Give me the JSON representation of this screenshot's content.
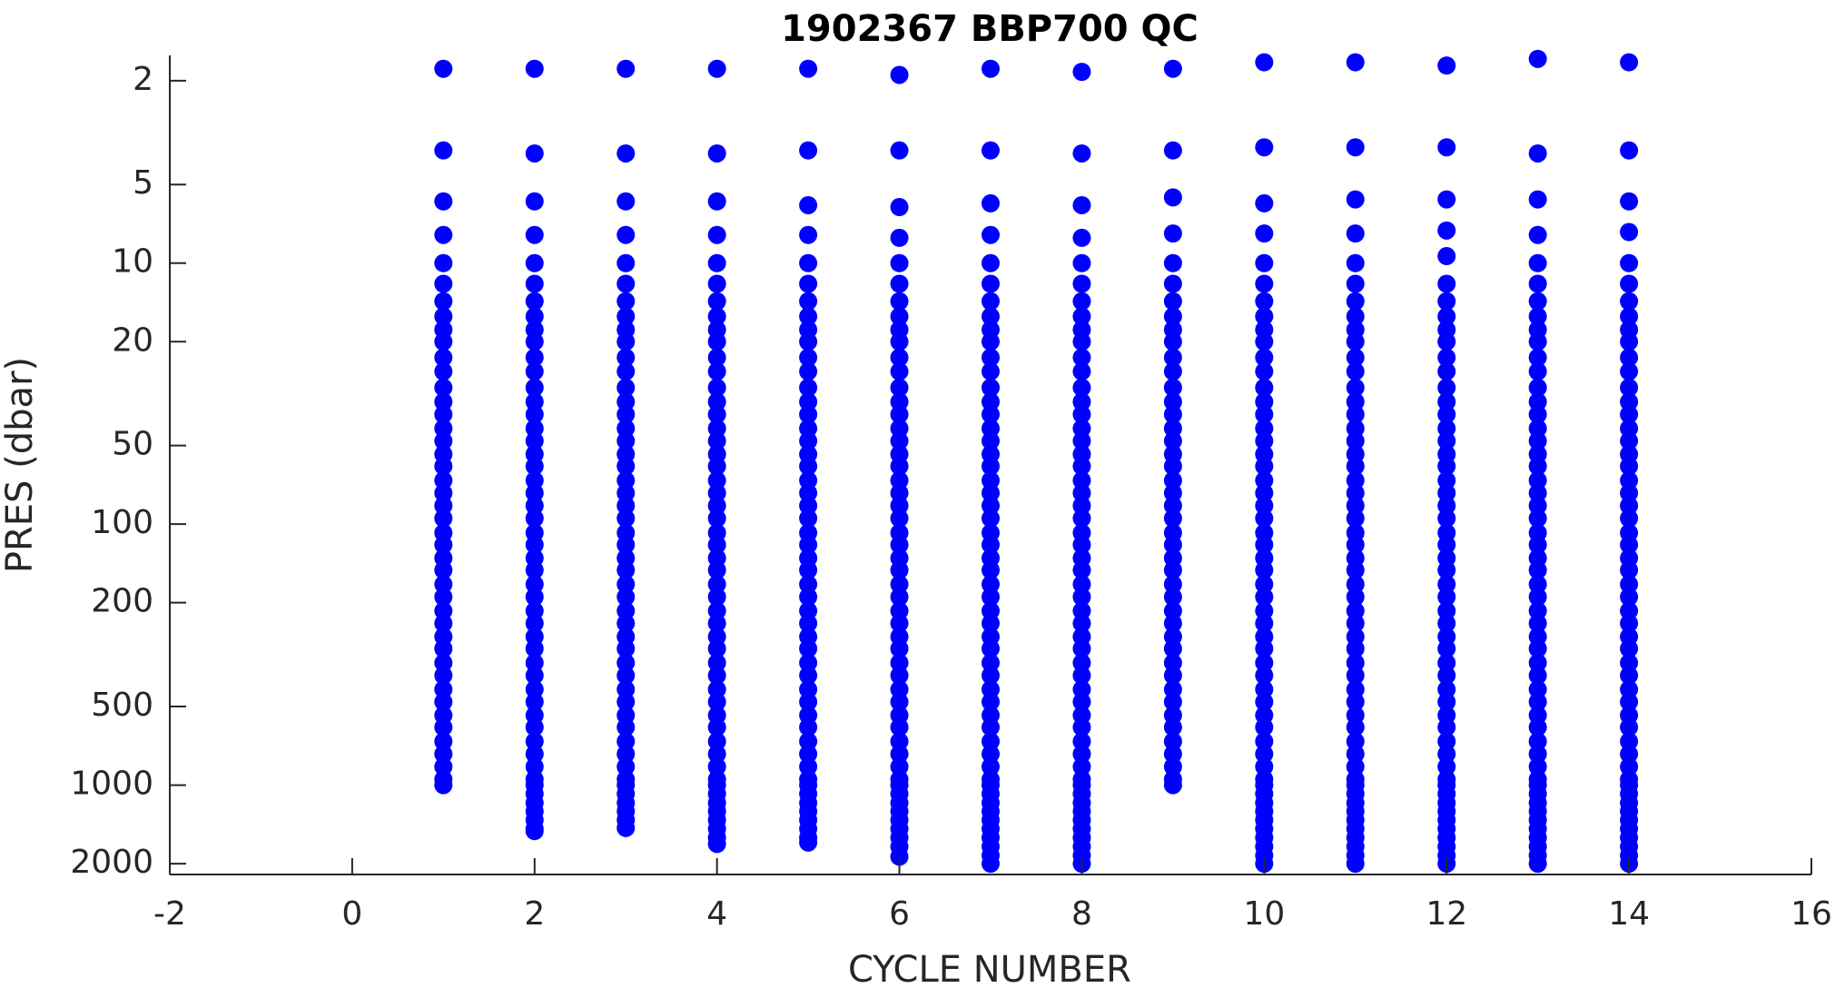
{
  "chart_data": {
    "type": "scatter",
    "title": "1902367 BBP700 QC",
    "x_label": "CYCLE NUMBER",
    "y_label": "PRES (dbar)",
    "color": "#0000ff",
    "log_y": true,
    "y_reversed": true,
    "grid": false,
    "xlim": [
      -2,
      16
    ],
    "xticks": [
      -2,
      0,
      2,
      4,
      6,
      8,
      10,
      12,
      14,
      16
    ],
    "ylim": [
      1.6,
      2200
    ],
    "yticks": [
      2,
      5,
      10,
      20,
      50,
      100,
      200,
      500,
      1000,
      2000
    ],
    "series": [
      {
        "x": 1,
        "values": [
          1.8,
          3.7,
          5.8,
          7.8,
          10,
          12,
          14,
          16,
          18,
          20,
          23,
          26,
          30,
          34,
          38,
          43,
          48,
          54,
          60,
          68,
          76,
          85,
          95,
          108,
          120,
          135,
          150,
          170,
          190,
          215,
          240,
          270,
          300,
          340,
          380,
          430,
          480,
          540,
          600,
          680,
          760,
          850,
          950,
          1000
        ]
      },
      {
        "x": 2,
        "values": [
          1.8,
          3.8,
          5.8,
          7.8,
          10,
          12,
          14,
          16,
          18,
          20,
          23,
          26,
          30,
          34,
          38,
          43,
          48,
          54,
          60,
          68,
          76,
          85,
          95,
          108,
          120,
          135,
          150,
          170,
          190,
          215,
          240,
          270,
          300,
          340,
          380,
          430,
          480,
          540,
          600,
          680,
          760,
          850,
          950,
          1000,
          1080,
          1170,
          1260,
          1360,
          1470,
          1500
        ]
      },
      {
        "x": 3,
        "values": [
          1.8,
          3.8,
          5.8,
          7.8,
          10,
          12,
          14,
          16,
          18,
          20,
          23,
          26,
          30,
          34,
          38,
          43,
          48,
          54,
          60,
          68,
          76,
          85,
          95,
          108,
          120,
          135,
          150,
          170,
          190,
          215,
          240,
          270,
          300,
          340,
          380,
          430,
          480,
          540,
          600,
          680,
          760,
          850,
          950,
          1000,
          1080,
          1170,
          1260,
          1360,
          1460
        ]
      },
      {
        "x": 4,
        "values": [
          1.8,
          3.8,
          5.8,
          7.8,
          10,
          12,
          14,
          16,
          18,
          20,
          23,
          26,
          30,
          34,
          38,
          43,
          48,
          54,
          60,
          68,
          76,
          85,
          95,
          108,
          120,
          135,
          150,
          170,
          190,
          215,
          240,
          270,
          300,
          340,
          380,
          430,
          480,
          540,
          600,
          680,
          760,
          850,
          950,
          1000,
          1080,
          1170,
          1260,
          1360,
          1470,
          1590,
          1680
        ]
      },
      {
        "x": 5,
        "values": [
          1.8,
          3.7,
          6.0,
          7.8,
          10,
          12,
          14,
          16,
          18,
          20,
          23,
          26,
          30,
          34,
          38,
          43,
          48,
          54,
          60,
          68,
          76,
          85,
          95,
          108,
          120,
          135,
          150,
          170,
          190,
          215,
          240,
          270,
          300,
          340,
          380,
          430,
          480,
          540,
          600,
          680,
          760,
          850,
          950,
          1000,
          1080,
          1170,
          1260,
          1360,
          1470,
          1590,
          1660
        ]
      },
      {
        "x": 6,
        "values": [
          1.9,
          3.7,
          6.1,
          8.0,
          10,
          12,
          14,
          16,
          18,
          20,
          23,
          26,
          30,
          34,
          38,
          43,
          48,
          54,
          60,
          68,
          76,
          85,
          95,
          108,
          120,
          135,
          150,
          170,
          190,
          215,
          240,
          270,
          300,
          340,
          380,
          430,
          480,
          540,
          600,
          680,
          760,
          850,
          950,
          1000,
          1080,
          1170,
          1260,
          1360,
          1470,
          1590,
          1720,
          1880
        ]
      },
      {
        "x": 7,
        "values": [
          1.8,
          3.7,
          5.9,
          7.8,
          10,
          12,
          14,
          16,
          18,
          20,
          23,
          26,
          30,
          34,
          38,
          43,
          48,
          54,
          60,
          68,
          76,
          85,
          95,
          108,
          120,
          135,
          150,
          170,
          190,
          215,
          240,
          270,
          300,
          340,
          380,
          430,
          480,
          540,
          600,
          680,
          760,
          850,
          950,
          1000,
          1080,
          1170,
          1260,
          1360,
          1470,
          1590,
          1720,
          1860,
          2000
        ]
      },
      {
        "x": 8,
        "values": [
          1.85,
          3.8,
          6.0,
          8.0,
          10,
          12,
          14,
          16,
          18,
          20,
          23,
          26,
          30,
          34,
          38,
          43,
          48,
          54,
          60,
          68,
          76,
          85,
          95,
          108,
          120,
          135,
          150,
          170,
          190,
          215,
          240,
          270,
          300,
          340,
          380,
          430,
          480,
          540,
          600,
          680,
          760,
          850,
          950,
          1000,
          1080,
          1170,
          1260,
          1360,
          1470,
          1590,
          1720,
          1860,
          2000
        ]
      },
      {
        "x": 9,
        "values": [
          1.8,
          3.7,
          5.6,
          7.7,
          10,
          12,
          14,
          16,
          18,
          20,
          23,
          26,
          30,
          34,
          38,
          43,
          48,
          54,
          60,
          68,
          76,
          85,
          95,
          108,
          120,
          135,
          150,
          170,
          190,
          215,
          240,
          270,
          300,
          340,
          380,
          430,
          480,
          540,
          600,
          680,
          760,
          850,
          950,
          1000
        ]
      },
      {
        "x": 10,
        "values": [
          1.7,
          3.6,
          5.9,
          7.7,
          10,
          12,
          14,
          16,
          18,
          20,
          23,
          26,
          30,
          34,
          38,
          43,
          48,
          54,
          60,
          68,
          76,
          85,
          95,
          108,
          120,
          135,
          150,
          170,
          190,
          215,
          240,
          270,
          300,
          340,
          380,
          430,
          480,
          540,
          600,
          680,
          760,
          850,
          950,
          1000,
          1080,
          1170,
          1260,
          1360,
          1470,
          1590,
          1720,
          1860,
          2000
        ]
      },
      {
        "x": 11,
        "values": [
          1.7,
          3.6,
          5.7,
          7.7,
          10,
          12,
          14,
          16,
          18,
          20,
          23,
          26,
          30,
          34,
          38,
          43,
          48,
          54,
          60,
          68,
          76,
          85,
          95,
          108,
          120,
          135,
          150,
          170,
          190,
          215,
          240,
          270,
          300,
          340,
          380,
          430,
          480,
          540,
          600,
          680,
          760,
          850,
          950,
          1000,
          1080,
          1170,
          1260,
          1360,
          1470,
          1590,
          1720,
          1860,
          2000
        ]
      },
      {
        "x": 12,
        "values": [
          1.75,
          3.6,
          5.7,
          7.5,
          9.4,
          12,
          14,
          16,
          18,
          20,
          23,
          26,
          30,
          34,
          38,
          43,
          48,
          54,
          60,
          68,
          76,
          85,
          95,
          108,
          120,
          135,
          150,
          170,
          190,
          215,
          240,
          270,
          300,
          340,
          380,
          430,
          480,
          540,
          600,
          680,
          760,
          850,
          950,
          1000,
          1080,
          1170,
          1260,
          1360,
          1470,
          1590,
          1720,
          1860,
          2000
        ]
      },
      {
        "x": 13,
        "values": [
          1.65,
          3.8,
          5.7,
          7.8,
          10,
          12,
          14,
          16,
          18,
          20,
          23,
          26,
          30,
          34,
          38,
          43,
          48,
          54,
          60,
          68,
          76,
          85,
          95,
          108,
          120,
          135,
          150,
          170,
          190,
          215,
          240,
          270,
          300,
          340,
          380,
          430,
          480,
          540,
          600,
          680,
          760,
          850,
          950,
          1000,
          1080,
          1170,
          1260,
          1360,
          1470,
          1590,
          1720,
          1860,
          2000
        ]
      },
      {
        "x": 14,
        "values": [
          1.7,
          3.7,
          5.8,
          7.6,
          10,
          12,
          14,
          16,
          18,
          20,
          23,
          26,
          30,
          34,
          38,
          43,
          48,
          54,
          60,
          68,
          76,
          85,
          95,
          108,
          120,
          135,
          150,
          170,
          190,
          215,
          240,
          270,
          300,
          340,
          380,
          430,
          480,
          540,
          600,
          680,
          760,
          850,
          950,
          1000,
          1080,
          1170,
          1260,
          1360,
          1470,
          1590,
          1720,
          1860,
          2000
        ]
      }
    ]
  }
}
